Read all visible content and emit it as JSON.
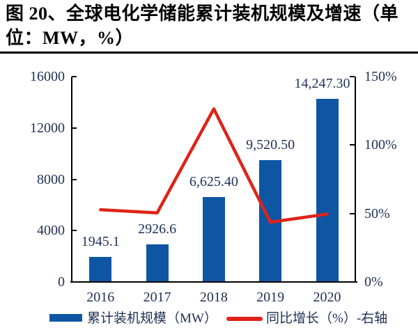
{
  "header": {
    "title": "图 20、全球电化学储能累计装机规模及增速（单位：MW，%）"
  },
  "colors": {
    "bar": "#0E56A4",
    "line": "#DF2318",
    "chart_text": "#1F3055",
    "axis": "#000000",
    "title_text": "#000000"
  },
  "chart_data": {
    "type": "bar+line combo",
    "categories": [
      "2016",
      "2017",
      "2018",
      "2019",
      "2020"
    ],
    "series": [
      {
        "name": "累计装机规模（MW）",
        "type": "bar",
        "axis": "left",
        "values": [
          1945.1,
          2926.6,
          6625.4,
          9520.5,
          14247.3
        ],
        "data_labels": [
          "1945.1",
          "2926.6",
          "6,625.40",
          "9,520.50",
          "14,247.30"
        ]
      },
      {
        "name": "同比增长（%）-右轴",
        "type": "line",
        "axis": "right",
        "values": [
          52.8,
          50.5,
          126.4,
          43.7,
          49.6
        ]
      }
    ],
    "left_axis": {
      "lim": [
        0,
        16000
      ],
      "tick_values": [
        0,
        4000,
        8000,
        12000,
        16000
      ],
      "tick_labels": [
        "0",
        "4000",
        "8000",
        "12000",
        "16000"
      ]
    },
    "right_axis": {
      "lim": [
        0,
        150
      ],
      "tick_values": [
        0,
        50,
        100,
        150
      ],
      "tick_labels": [
        "0%",
        "50%",
        "100%",
        "150%"
      ]
    },
    "legend": [
      {
        "label": "累计装机规模（MW）",
        "swatch": "bar"
      },
      {
        "label": "同比增长（%）-右轴",
        "swatch": "line"
      }
    ],
    "grid": false,
    "legend_position": "bottom"
  }
}
